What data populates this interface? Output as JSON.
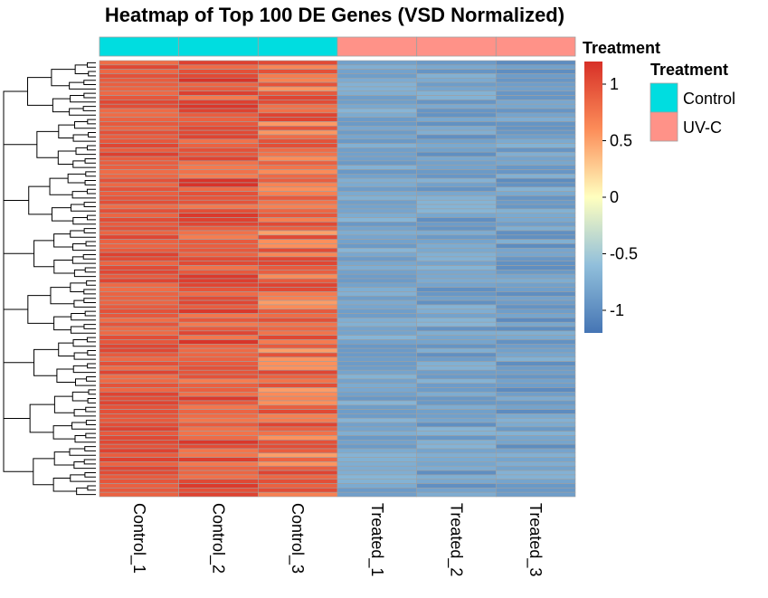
{
  "chart_data": {
    "type": "heatmap",
    "title": "Heatmap of Top 100 DE Genes (VSD Normalized)",
    "columns": [
      "Control_1",
      "Control_2",
      "Control_3",
      "Treated_1",
      "Treated_2",
      "Treated_3"
    ],
    "row_count": 100,
    "annotation": {
      "name": "Treatment",
      "values": [
        "Control",
        "Control",
        "Control",
        "UV-C",
        "UV-C",
        "UV-C"
      ],
      "legend": [
        {
          "label": "Control",
          "color": "#00DDE0"
        },
        {
          "label": "UV-C",
          "color": "#FF9288"
        }
      ]
    },
    "colorbar": {
      "range": [
        -1.2,
        1.2
      ],
      "ticks": [
        1,
        0.5,
        0,
        -0.5,
        -1
      ],
      "tick_labels": [
        "1",
        "0.5",
        "0",
        "-0.5",
        "-1"
      ],
      "colors": [
        "#4575B4",
        "#91BFDB",
        "#FFFFBF",
        "#FC8D59",
        "#D73027"
      ]
    },
    "row_dendrogram": true,
    "cell_border_color": "#A0A0A0",
    "value_summary": {
      "Control_1": "high (~0.8 to 1.1)",
      "Control_2": "high (~0.7 to 1.2)",
      "Control_3": "moderately high (~0.5 to 1.1)",
      "Treated_1": "low (~-0.9 to -0.7)",
      "Treated_2": "low (~-1.0 to -0.7)",
      "Treated_3": "low (~-1.0 to -0.7)"
    }
  }
}
